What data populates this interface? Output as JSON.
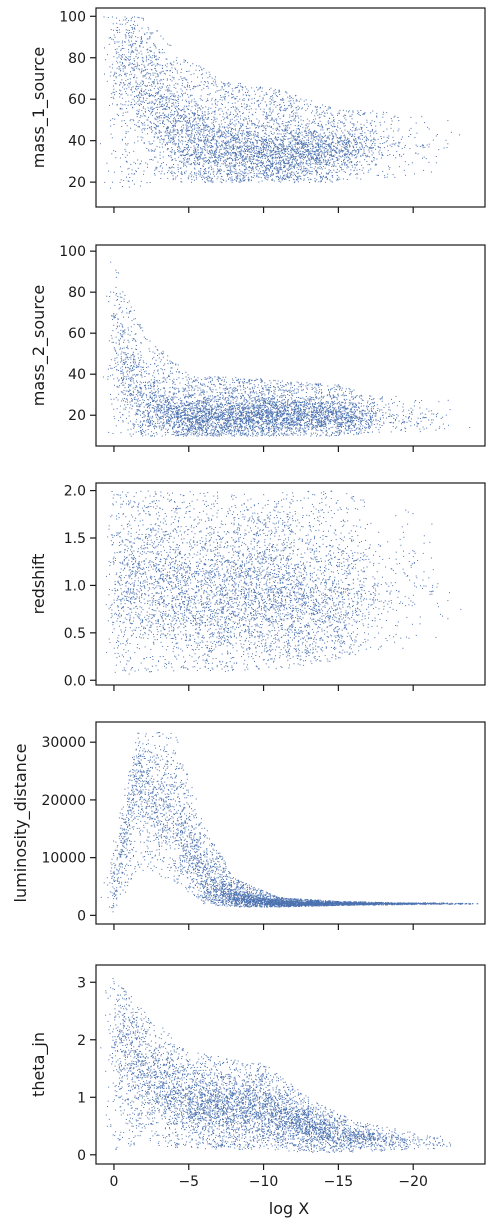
{
  "figure": {
    "xlabel": "log X",
    "x_ticks": [
      0,
      -5,
      -10,
      -15,
      -20
    ],
    "x_tick_labels": [
      "0",
      "−5",
      "−10",
      "−15",
      "−20"
    ],
    "xlim": [
      1.2,
      -24.8
    ],
    "point_color": "#4c72b0"
  },
  "chart_data": [
    {
      "type": "scatter",
      "ylabel": "mass_1_source",
      "ylim": [
        8,
        104
      ],
      "yticks": [
        20,
        40,
        60,
        80,
        100
      ],
      "ytick_labels": [
        "20",
        "40",
        "60",
        "80",
        "100"
      ],
      "density_profile": [
        {
          "x": 0.0,
          "y_low": 16,
          "y_high": 100,
          "y_center": 82,
          "weight": 1.0
        },
        {
          "x": -2.0,
          "y_low": 18,
          "y_high": 100,
          "y_center": 70,
          "weight": 1.4
        },
        {
          "x": -4.0,
          "y_low": 20,
          "y_high": 85,
          "y_center": 45,
          "weight": 1.6
        },
        {
          "x": -7.0,
          "y_low": 20,
          "y_high": 70,
          "y_center": 36,
          "weight": 2.0
        },
        {
          "x": -11.0,
          "y_low": 20,
          "y_high": 65,
          "y_center": 33,
          "weight": 2.2
        },
        {
          "x": -15.0,
          "y_low": 20,
          "y_high": 55,
          "y_center": 36,
          "weight": 1.6
        },
        {
          "x": -18.0,
          "y_low": 22,
          "y_high": 55,
          "y_center": 38,
          "weight": 0.3
        },
        {
          "x": -23.0,
          "y_low": 25,
          "y_high": 50,
          "y_center": 38,
          "weight": 0.02
        }
      ]
    },
    {
      "type": "scatter",
      "ylabel": "mass_2_source",
      "ylim": [
        5,
        103
      ],
      "yticks": [
        20,
        40,
        60,
        80,
        100
      ],
      "ytick_labels": [
        "20",
        "40",
        "60",
        "80",
        "100"
      ],
      "density_profile": [
        {
          "x": 0.0,
          "y_low": 10,
          "y_high": 95,
          "y_center": 55,
          "weight": 1.0
        },
        {
          "x": -2.0,
          "y_low": 10,
          "y_high": 60,
          "y_center": 25,
          "weight": 1.2
        },
        {
          "x": -5.0,
          "y_low": 10,
          "y_high": 40,
          "y_center": 18,
          "weight": 1.8
        },
        {
          "x": -10.0,
          "y_low": 10,
          "y_high": 38,
          "y_center": 20,
          "weight": 2.2
        },
        {
          "x": -15.0,
          "y_low": 10,
          "y_high": 35,
          "y_center": 20,
          "weight": 1.6
        },
        {
          "x": -18.0,
          "y_low": 12,
          "y_high": 30,
          "y_center": 18,
          "weight": 0.3
        },
        {
          "x": -23.0,
          "y_low": 12,
          "y_high": 28,
          "y_center": 18,
          "weight": 0.02
        }
      ]
    },
    {
      "type": "scatter",
      "ylabel": "redshift",
      "ylim": [
        -0.05,
        2.08
      ],
      "yticks": [
        0.0,
        0.5,
        1.0,
        1.5,
        2.0
      ],
      "ytick_labels": [
        "0.0",
        "0.5",
        "1.0",
        "1.5",
        "2.0"
      ],
      "density_profile": [
        {
          "x": 0.0,
          "y_low": 0.05,
          "y_high": 2.0,
          "y_center": 1.1,
          "weight": 1.0
        },
        {
          "x": -5.0,
          "y_low": 0.1,
          "y_high": 2.0,
          "y_center": 0.9,
          "weight": 1.6
        },
        {
          "x": -10.0,
          "y_low": 0.1,
          "y_high": 2.0,
          "y_center": 0.9,
          "weight": 2.0
        },
        {
          "x": -15.0,
          "y_low": 0.2,
          "y_high": 2.0,
          "y_center": 0.8,
          "weight": 1.4
        },
        {
          "x": -18.0,
          "y_low": 0.3,
          "y_high": 1.9,
          "y_center": 1.0,
          "weight": 0.3
        },
        {
          "x": -23.0,
          "y_low": 0.4,
          "y_high": 1.6,
          "y_center": 1.0,
          "weight": 0.02
        }
      ]
    },
    {
      "type": "scatter",
      "ylabel": "luminosity_distance",
      "ylim": [
        -1500,
        33500
      ],
      "yticks": [
        0,
        10000,
        20000,
        30000
      ],
      "ytick_labels": [
        "0",
        "10000",
        "20000",
        "30000"
      ],
      "density_profile": [
        {
          "x": 0.0,
          "y_low": 300,
          "y_high": 14000,
          "y_center": 5000,
          "weight": 0.8
        },
        {
          "x": -1.5,
          "y_low": 8000,
          "y_high": 32000,
          "y_center": 24000,
          "weight": 1.2
        },
        {
          "x": -4.0,
          "y_low": 6000,
          "y_high": 32000,
          "y_center": 17000,
          "weight": 1.3
        },
        {
          "x": -6.0,
          "y_low": 2000,
          "y_high": 16000,
          "y_center": 6000,
          "weight": 1.6
        },
        {
          "x": -8.0,
          "y_low": 1500,
          "y_high": 6500,
          "y_center": 3000,
          "weight": 1.8
        },
        {
          "x": -11.0,
          "y_low": 1500,
          "y_high": 3200,
          "y_center": 2100,
          "weight": 2.0
        },
        {
          "x": -15.0,
          "y_low": 1800,
          "y_high": 2500,
          "y_center": 2100,
          "weight": 1.6
        },
        {
          "x": -19.0,
          "y_low": 1900,
          "y_high": 2300,
          "y_center": 2100,
          "weight": 0.6
        },
        {
          "x": -24.0,
          "y_low": 2000,
          "y_high": 2200,
          "y_center": 2100,
          "weight": 0.1
        }
      ]
    },
    {
      "type": "scatter",
      "ylabel": "theta_jn",
      "ylim": [
        -0.16,
        3.3
      ],
      "yticks": [
        0,
        1,
        2,
        3
      ],
      "ytick_labels": [
        "0",
        "1",
        "2",
        "3"
      ],
      "density_profile": [
        {
          "x": 0.0,
          "y_low": 0.1,
          "y_high": 3.1,
          "y_center": 2.2,
          "weight": 1.0
        },
        {
          "x": -2.0,
          "y_low": 0.2,
          "y_high": 2.5,
          "y_center": 1.5,
          "weight": 1.4
        },
        {
          "x": -5.0,
          "y_low": 0.1,
          "y_high": 1.8,
          "y_center": 0.9,
          "weight": 1.8
        },
        {
          "x": -10.0,
          "y_low": 0.1,
          "y_high": 1.6,
          "y_center": 0.8,
          "weight": 2.2
        },
        {
          "x": -13.0,
          "y_low": 0.05,
          "y_high": 1.0,
          "y_center": 0.5,
          "weight": 1.8
        },
        {
          "x": -16.0,
          "y_low": 0.05,
          "y_high": 0.6,
          "y_center": 0.3,
          "weight": 1.0
        },
        {
          "x": -20.0,
          "y_low": 0.1,
          "y_high": 0.4,
          "y_center": 0.25,
          "weight": 0.2
        },
        {
          "x": -23.0,
          "y_low": 0.1,
          "y_high": 0.3,
          "y_center": 0.2,
          "weight": 0.02
        }
      ]
    }
  ]
}
